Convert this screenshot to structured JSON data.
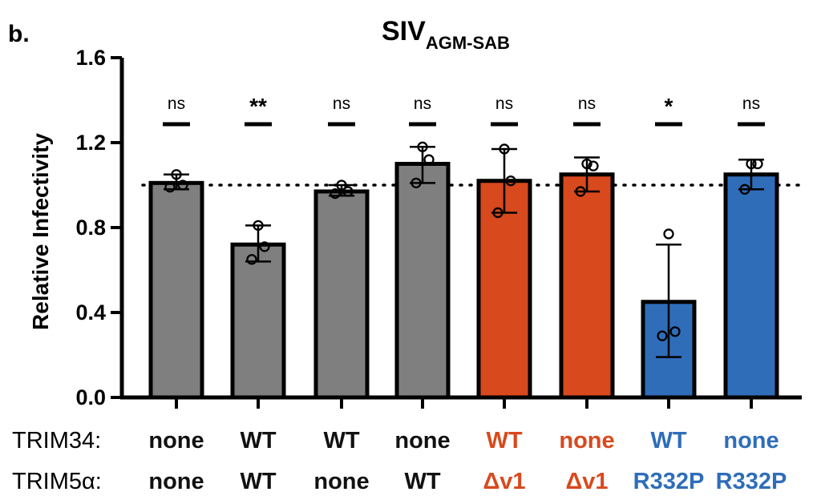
{
  "panel_label": "b.",
  "chart_data": {
    "type": "bar",
    "title_main": "SIV",
    "title_subscript": "AGM-SAB",
    "ylabel": "Relative Infectivity",
    "ylim": [
      0.0,
      1.6
    ],
    "yticks": [
      "0.0",
      "0.4",
      "0.8",
      "1.2",
      "1.6"
    ],
    "reference_line": 1.0,
    "row_labels": [
      "TRIM34:",
      "TRIM5α:"
    ],
    "categories": [
      {
        "trim34": "none",
        "trim5a": "none",
        "color": "#7f7f7f",
        "text_color": "#111111",
        "value": 1.01,
        "err_low": 0.98,
        "err_high": 1.05,
        "points": [
          1.05,
          1.0,
          0.99
        ],
        "significance": "ns"
      },
      {
        "trim34": "WT",
        "trim5a": "WT",
        "color": "#7f7f7f",
        "text_color": "#111111",
        "value": 0.72,
        "err_low": 0.64,
        "err_high": 0.81,
        "points": [
          0.81,
          0.71,
          0.65
        ],
        "significance": "**"
      },
      {
        "trim34": "WT",
        "trim5a": "none",
        "color": "#7f7f7f",
        "text_color": "#111111",
        "value": 0.97,
        "err_low": 0.95,
        "err_high": 1.0,
        "points": [
          1.0,
          0.97,
          0.96
        ],
        "significance": "ns"
      },
      {
        "trim34": "none",
        "trim5a": "WT",
        "color": "#7f7f7f",
        "text_color": "#111111",
        "value": 1.1,
        "err_low": 1.01,
        "err_high": 1.18,
        "points": [
          1.18,
          1.12,
          1.01
        ],
        "significance": "ns"
      },
      {
        "trim34": "WT",
        "trim5a": "Δv1",
        "color": "#d8491d",
        "text_color": "#d8491d",
        "value": 1.02,
        "err_low": 0.87,
        "err_high": 1.17,
        "points": [
          1.17,
          1.02,
          0.87
        ],
        "significance": "ns"
      },
      {
        "trim34": "none",
        "trim5a": "Δv1",
        "color": "#d8491d",
        "text_color": "#d8491d",
        "value": 1.05,
        "err_low": 0.97,
        "err_high": 1.13,
        "points": [
          1.1,
          1.09,
          0.97
        ],
        "significance": "ns"
      },
      {
        "trim34": "WT",
        "trim5a": "R332P",
        "color": "#2f6db9",
        "text_color": "#2f6db9",
        "value": 0.45,
        "err_low": 0.19,
        "err_high": 0.72,
        "points": [
          0.77,
          0.31,
          0.29
        ],
        "significance": "*"
      },
      {
        "trim34": "none",
        "trim5a": "R332P",
        "color": "#2f6db9",
        "text_color": "#2f6db9",
        "value": 1.05,
        "err_low": 0.98,
        "err_high": 1.12,
        "points": [
          1.1,
          1.1,
          0.98
        ],
        "significance": "ns"
      }
    ]
  }
}
